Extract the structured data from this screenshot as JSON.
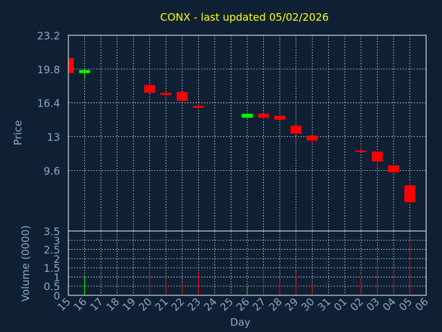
{
  "chart_data": {
    "type": "candlestick",
    "title": "CONX - last updated 05/02/2026",
    "xlabel": "Day",
    "price_panel": {
      "ylabel": "Price",
      "yticks": [
        "23.2",
        "19.8",
        "16.4",
        "13",
        "9.6",
        "3.5"
      ],
      "yticks_values": [
        23.2,
        19.8,
        16.4,
        13,
        9.6,
        3.5
      ],
      "ylim": [
        3.5,
        23.2
      ]
    },
    "volume_panel": {
      "ylabel": "Volume (0000)",
      "yticks": [
        "3.5",
        "3",
        "2.5",
        "2",
        "1.5",
        "1",
        "0.5",
        "0"
      ],
      "yticks_values": [
        3.5,
        3,
        2.5,
        2,
        1.5,
        1,
        0.5,
        0
      ],
      "ylim": [
        0,
        3.5
      ]
    },
    "x_tick_labels": [
      "15",
      "16",
      "17",
      "18",
      "19",
      "20",
      "21",
      "22",
      "23",
      "24",
      "25",
      "26",
      "27",
      "28",
      "29",
      "30",
      "31",
      "01",
      "02",
      "03",
      "04",
      "05",
      "06"
    ],
    "colors": {
      "up": "#00ff00",
      "down": "#ff0000",
      "grid": "#ffffff",
      "background": "#0f2035",
      "title": "#ffff00",
      "text": "#8ea6c4"
    },
    "candles": [
      {
        "day": "15",
        "open": 20.9,
        "high": 20.9,
        "low": 19.4,
        "close": 19.4,
        "volume": 0
      },
      {
        "day": "16",
        "open": 19.4,
        "high": 19.7,
        "low": 18.8,
        "close": 19.7,
        "volume": 1.0
      },
      {
        "day": "20",
        "open": 18.2,
        "high": 18.2,
        "low": 17.4,
        "close": 17.4,
        "volume": 1.6
      },
      {
        "day": "21",
        "open": 17.4,
        "high": 17.5,
        "low": 16.8,
        "close": 17.2,
        "volume": 0.9
      },
      {
        "day": "22",
        "open": 17.5,
        "high": 17.5,
        "low": 16.6,
        "close": 16.6,
        "volume": 0.7
      },
      {
        "day": "23",
        "open": 16.1,
        "high": 16.2,
        "low": 15.8,
        "close": 15.9,
        "volume": 1.2
      },
      {
        "day": "26",
        "open": 14.9,
        "high": 15.4,
        "low": 14.9,
        "close": 15.3,
        "volume": 0.5
      },
      {
        "day": "27",
        "open": 15.3,
        "high": 15.3,
        "low": 14.7,
        "close": 14.9,
        "volume": 1.6
      },
      {
        "day": "28",
        "open": 15.1,
        "high": 15.1,
        "low": 14.5,
        "close": 14.7,
        "volume": 0.9
      },
      {
        "day": "29",
        "open": 14.1,
        "high": 14.1,
        "low": 13.2,
        "close": 13.3,
        "volume": 1.3
      },
      {
        "day": "30",
        "open": 13.1,
        "high": 13.1,
        "low": 12.4,
        "close": 12.6,
        "volume": 0.7
      },
      {
        "day": "02",
        "open": 11.6,
        "high": 12.1,
        "low": 11.5,
        "close": 11.5,
        "volume": 1.1
      },
      {
        "day": "03",
        "open": 11.5,
        "high": 11.5,
        "low": 9.8,
        "close": 10.5,
        "volume": 1.9
      },
      {
        "day": "04",
        "open": 10.1,
        "high": 10.1,
        "low": 9.4,
        "close": 9.4,
        "volume": 1.6
      },
      {
        "day": "05",
        "open": 8.1,
        "high": 8.4,
        "low": 6.3,
        "close": 6.4,
        "volume": 3.1
      }
    ]
  }
}
